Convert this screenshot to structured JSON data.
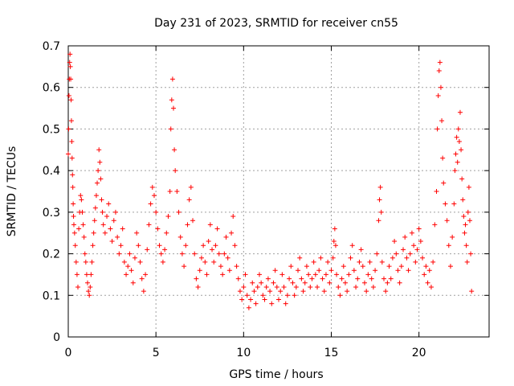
{
  "chart_data": {
    "type": "scatter",
    "title": "Day 231 of 2023, SRMTID for receiver cn55",
    "xlabel": "GPS time / hours",
    "ylabel": "SRMTID / TECUs",
    "xlim": [
      0,
      24
    ],
    "ylim": [
      0,
      0.7
    ],
    "xticks": [
      0,
      5,
      10,
      15,
      20
    ],
    "xtick_labels": [
      "0",
      "5",
      "10",
      "15",
      "20"
    ],
    "yticks": [
      0,
      0.1,
      0.2,
      0.3,
      0.4,
      0.5,
      0.6,
      0.7
    ],
    "ytick_labels": [
      "0",
      "0.1",
      "0.2",
      "0.3",
      "0.4",
      "0.5",
      "0.6",
      "0.7"
    ],
    "grid": true,
    "marker": "+",
    "color": "#ff0000",
    "series": [
      {
        "name": "SRMTID",
        "points": [
          [
            0.0,
            0.44
          ],
          [
            0.02,
            0.5
          ],
          [
            0.04,
            0.58
          ],
          [
            0.06,
            0.62
          ],
          [
            0.08,
            0.66
          ],
          [
            0.1,
            0.68
          ],
          [
            0.12,
            0.65
          ],
          [
            0.14,
            0.62
          ],
          [
            0.16,
            0.57
          ],
          [
            0.18,
            0.52
          ],
          [
            0.2,
            0.47
          ],
          [
            0.22,
            0.43
          ],
          [
            0.24,
            0.39
          ],
          [
            0.26,
            0.36
          ],
          [
            0.28,
            0.32
          ],
          [
            0.3,
            0.29
          ],
          [
            0.32,
            0.27
          ],
          [
            0.36,
            0.25
          ],
          [
            0.4,
            0.22
          ],
          [
            0.45,
            0.18
          ],
          [
            0.5,
            0.15
          ],
          [
            0.55,
            0.12
          ],
          [
            0.6,
            0.26
          ],
          [
            0.65,
            0.3
          ],
          [
            0.7,
            0.34
          ],
          [
            0.75,
            0.33
          ],
          [
            0.8,
            0.3
          ],
          [
            0.85,
            0.27
          ],
          [
            0.9,
            0.24
          ],
          [
            0.95,
            0.2
          ],
          [
            1.0,
            0.18
          ],
          [
            1.05,
            0.15
          ],
          [
            1.1,
            0.13
          ],
          [
            1.15,
            0.11
          ],
          [
            1.2,
            0.1
          ],
          [
            1.25,
            0.12
          ],
          [
            1.3,
            0.15
          ],
          [
            1.35,
            0.18
          ],
          [
            1.4,
            0.22
          ],
          [
            1.45,
            0.25
          ],
          [
            1.5,
            0.28
          ],
          [
            1.55,
            0.31
          ],
          [
            1.6,
            0.34
          ],
          [
            1.65,
            0.37
          ],
          [
            1.7,
            0.4
          ],
          [
            1.75,
            0.45
          ],
          [
            1.8,
            0.42
          ],
          [
            1.85,
            0.38
          ],
          [
            1.9,
            0.33
          ],
          [
            1.95,
            0.3
          ],
          [
            2.0,
            0.27
          ],
          [
            2.1,
            0.25
          ],
          [
            2.2,
            0.29
          ],
          [
            2.3,
            0.32
          ],
          [
            2.4,
            0.26
          ],
          [
            2.5,
            0.23
          ],
          [
            2.6,
            0.28
          ],
          [
            2.7,
            0.3
          ],
          [
            2.8,
            0.24
          ],
          [
            2.9,
            0.2
          ],
          [
            3.0,
            0.22
          ],
          [
            3.1,
            0.26
          ],
          [
            3.2,
            0.18
          ],
          [
            3.3,
            0.15
          ],
          [
            3.4,
            0.17
          ],
          [
            3.5,
            0.2
          ],
          [
            3.6,
            0.16
          ],
          [
            3.7,
            0.13
          ],
          [
            3.8,
            0.19
          ],
          [
            3.9,
            0.25
          ],
          [
            4.0,
            0.22
          ],
          [
            4.1,
            0.18
          ],
          [
            4.2,
            0.14
          ],
          [
            4.3,
            0.11
          ],
          [
            4.4,
            0.15
          ],
          [
            4.5,
            0.21
          ],
          [
            4.6,
            0.27
          ],
          [
            4.7,
            0.32
          ],
          [
            4.8,
            0.36
          ],
          [
            4.9,
            0.34
          ],
          [
            5.0,
            0.3
          ],
          [
            5.1,
            0.26
          ],
          [
            5.2,
            0.22
          ],
          [
            5.3,
            0.2
          ],
          [
            5.4,
            0.18
          ],
          [
            5.5,
            0.21
          ],
          [
            5.6,
            0.25
          ],
          [
            5.7,
            0.29
          ],
          [
            5.8,
            0.35
          ],
          [
            5.85,
            0.5
          ],
          [
            5.9,
            0.57
          ],
          [
            5.95,
            0.62
          ],
          [
            6.0,
            0.55
          ],
          [
            6.05,
            0.45
          ],
          [
            6.1,
            0.4
          ],
          [
            6.2,
            0.35
          ],
          [
            6.3,
            0.3
          ],
          [
            6.4,
            0.24
          ],
          [
            6.5,
            0.2
          ],
          [
            6.6,
            0.17
          ],
          [
            6.7,
            0.22
          ],
          [
            6.8,
            0.27
          ],
          [
            6.9,
            0.33
          ],
          [
            7.0,
            0.36
          ],
          [
            7.1,
            0.28
          ],
          [
            7.2,
            0.2
          ],
          [
            7.3,
            0.14
          ],
          [
            7.4,
            0.12
          ],
          [
            7.5,
            0.16
          ],
          [
            7.6,
            0.19
          ],
          [
            7.7,
            0.22
          ],
          [
            7.8,
            0.18
          ],
          [
            7.9,
            0.15
          ],
          [
            8.0,
            0.23
          ],
          [
            8.1,
            0.27
          ],
          [
            8.2,
            0.21
          ],
          [
            8.3,
            0.18
          ],
          [
            8.4,
            0.22
          ],
          [
            8.5,
            0.26
          ],
          [
            8.6,
            0.2
          ],
          [
            8.7,
            0.17
          ],
          [
            8.8,
            0.15
          ],
          [
            8.9,
            0.2
          ],
          [
            9.0,
            0.24
          ],
          [
            9.1,
            0.19
          ],
          [
            9.2,
            0.16
          ],
          [
            9.3,
            0.25
          ],
          [
            9.4,
            0.29
          ],
          [
            9.5,
            0.22
          ],
          [
            9.6,
            0.17
          ],
          [
            9.7,
            0.14
          ],
          [
            9.8,
            0.11
          ],
          [
            9.9,
            0.09
          ],
          [
            10.0,
            0.12
          ],
          [
            10.1,
            0.15
          ],
          [
            10.2,
            0.1
          ],
          [
            10.3,
            0.07
          ],
          [
            10.4,
            0.09
          ],
          [
            10.5,
            0.13
          ],
          [
            10.6,
            0.11
          ],
          [
            10.7,
            0.08
          ],
          [
            10.8,
            0.12
          ],
          [
            10.9,
            0.15
          ],
          [
            11.0,
            0.13
          ],
          [
            11.1,
            0.1
          ],
          [
            11.2,
            0.09
          ],
          [
            11.3,
            0.12
          ],
          [
            11.4,
            0.14
          ],
          [
            11.5,
            0.11
          ],
          [
            11.6,
            0.08
          ],
          [
            11.7,
            0.13
          ],
          [
            11.8,
            0.16
          ],
          [
            11.9,
            0.12
          ],
          [
            12.0,
            0.09
          ],
          [
            12.1,
            0.11
          ],
          [
            12.2,
            0.15
          ],
          [
            12.3,
            0.12
          ],
          [
            12.4,
            0.08
          ],
          [
            12.5,
            0.1
          ],
          [
            12.6,
            0.14
          ],
          [
            12.7,
            0.17
          ],
          [
            12.8,
            0.13
          ],
          [
            12.9,
            0.1
          ],
          [
            13.0,
            0.12
          ],
          [
            13.1,
            0.16
          ],
          [
            13.2,
            0.19
          ],
          [
            13.3,
            0.14
          ],
          [
            13.4,
            0.11
          ],
          [
            13.5,
            0.13
          ],
          [
            13.6,
            0.17
          ],
          [
            13.7,
            0.15
          ],
          [
            13.8,
            0.12
          ],
          [
            13.9,
            0.14
          ],
          [
            14.0,
            0.18
          ],
          [
            14.1,
            0.15
          ],
          [
            14.2,
            0.12
          ],
          [
            14.3,
            0.16
          ],
          [
            14.4,
            0.19
          ],
          [
            14.5,
            0.14
          ],
          [
            14.6,
            0.11
          ],
          [
            14.7,
            0.15
          ],
          [
            14.8,
            0.18
          ],
          [
            14.9,
            0.13
          ],
          [
            15.0,
            0.16
          ],
          [
            15.1,
            0.19
          ],
          [
            15.15,
            0.23
          ],
          [
            15.2,
            0.26
          ],
          [
            15.25,
            0.22
          ],
          [
            15.3,
            0.15
          ],
          [
            15.4,
            0.12
          ],
          [
            15.5,
            0.1
          ],
          [
            15.6,
            0.14
          ],
          [
            15.7,
            0.17
          ],
          [
            15.8,
            0.13
          ],
          [
            15.9,
            0.11
          ],
          [
            16.0,
            0.15
          ],
          [
            16.1,
            0.19
          ],
          [
            16.2,
            0.22
          ],
          [
            16.3,
            0.16
          ],
          [
            16.4,
            0.12
          ],
          [
            16.5,
            0.14
          ],
          [
            16.6,
            0.18
          ],
          [
            16.7,
            0.21
          ],
          [
            16.8,
            0.17
          ],
          [
            16.9,
            0.13
          ],
          [
            17.0,
            0.11
          ],
          [
            17.1,
            0.15
          ],
          [
            17.2,
            0.18
          ],
          [
            17.3,
            0.14
          ],
          [
            17.4,
            0.12
          ],
          [
            17.5,
            0.16
          ],
          [
            17.6,
            0.2
          ],
          [
            17.7,
            0.28
          ],
          [
            17.75,
            0.33
          ],
          [
            17.8,
            0.36
          ],
          [
            17.85,
            0.3
          ],
          [
            17.9,
            0.18
          ],
          [
            18.0,
            0.14
          ],
          [
            18.1,
            0.11
          ],
          [
            18.2,
            0.13
          ],
          [
            18.3,
            0.17
          ],
          [
            18.4,
            0.14
          ],
          [
            18.5,
            0.19
          ],
          [
            18.6,
            0.23
          ],
          [
            18.7,
            0.2
          ],
          [
            18.8,
            0.16
          ],
          [
            18.9,
            0.13
          ],
          [
            19.0,
            0.17
          ],
          [
            19.1,
            0.21
          ],
          [
            19.2,
            0.24
          ],
          [
            19.3,
            0.19
          ],
          [
            19.4,
            0.16
          ],
          [
            19.5,
            0.2
          ],
          [
            19.6,
            0.25
          ],
          [
            19.7,
            0.22
          ],
          [
            19.8,
            0.18
          ],
          [
            19.9,
            0.21
          ],
          [
            20.0,
            0.26
          ],
          [
            20.1,
            0.23
          ],
          [
            20.2,
            0.19
          ],
          [
            20.3,
            0.15
          ],
          [
            20.4,
            0.17
          ],
          [
            20.5,
            0.13
          ],
          [
            20.6,
            0.16
          ],
          [
            20.7,
            0.12
          ],
          [
            20.8,
            0.18
          ],
          [
            20.9,
            0.27
          ],
          [
            21.0,
            0.35
          ],
          [
            21.05,
            0.5
          ],
          [
            21.1,
            0.58
          ],
          [
            21.15,
            0.64
          ],
          [
            21.2,
            0.66
          ],
          [
            21.25,
            0.6
          ],
          [
            21.3,
            0.52
          ],
          [
            21.35,
            0.43
          ],
          [
            21.4,
            0.37
          ],
          [
            21.5,
            0.32
          ],
          [
            21.6,
            0.28
          ],
          [
            21.7,
            0.22
          ],
          [
            21.8,
            0.17
          ],
          [
            21.9,
            0.24
          ],
          [
            22.0,
            0.32
          ],
          [
            22.05,
            0.4
          ],
          [
            22.1,
            0.44
          ],
          [
            22.15,
            0.48
          ],
          [
            22.2,
            0.42
          ],
          [
            22.25,
            0.5
          ],
          [
            22.3,
            0.47
          ],
          [
            22.35,
            0.54
          ],
          [
            22.4,
            0.45
          ],
          [
            22.45,
            0.38
          ],
          [
            22.5,
            0.33
          ],
          [
            22.55,
            0.29
          ],
          [
            22.6,
            0.25
          ],
          [
            22.65,
            0.27
          ],
          [
            22.7,
            0.22
          ],
          [
            22.75,
            0.18
          ],
          [
            22.8,
            0.3
          ],
          [
            22.85,
            0.36
          ],
          [
            22.9,
            0.28
          ],
          [
            22.95,
            0.2
          ],
          [
            23.0,
            0.11
          ]
        ]
      }
    ]
  }
}
